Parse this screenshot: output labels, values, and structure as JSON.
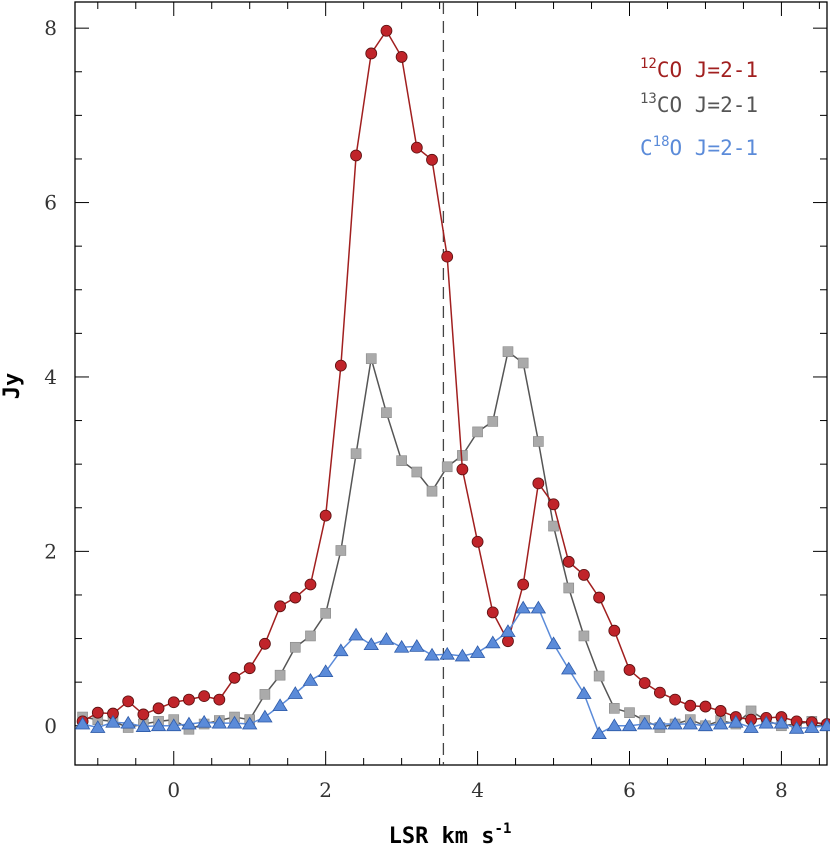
{
  "chart_data": {
    "type": "line",
    "xlabel": "LSR km s",
    "xlabel_sup": "-1",
    "ylabel": "Jy",
    "xlim": [
      -1.3,
      8.6
    ],
    "ylim": [
      -0.45,
      8.3
    ],
    "xticks": [
      0,
      2,
      4,
      6,
      8
    ],
    "yticks": [
      0,
      2,
      4,
      6,
      8
    ],
    "vline_x": 3.55,
    "grid": false,
    "legend_position": "top-right",
    "series": [
      {
        "name": "12CO J=2-1",
        "legend_sup": "12",
        "legend_main": "CO J=2-1",
        "legend_prefix": "",
        "color": "#a11f1f",
        "marker_fill": "#c0242a",
        "marker": "circle",
        "x": [
          -1.2,
          -1.0,
          -0.8,
          -0.6,
          -0.4,
          -0.2,
          0.0,
          0.2,
          0.4,
          0.6,
          0.8,
          1.0,
          1.2,
          1.4,
          1.6,
          1.8,
          2.0,
          2.2,
          2.4,
          2.6,
          2.8,
          3.0,
          3.2,
          3.4,
          3.6,
          3.8,
          4.0,
          4.2,
          4.4,
          4.6,
          4.8,
          5.0,
          5.2,
          5.4,
          5.6,
          5.8,
          6.0,
          6.2,
          6.4,
          6.6,
          6.8,
          7.0,
          7.2,
          7.4,
          7.6,
          7.8,
          8.0,
          8.2,
          8.4,
          8.6
        ],
        "y": [
          0.05,
          0.15,
          0.14,
          0.28,
          0.13,
          0.2,
          0.27,
          0.3,
          0.34,
          0.3,
          0.55,
          0.66,
          0.94,
          1.37,
          1.47,
          1.62,
          2.41,
          4.13,
          6.54,
          7.71,
          7.97,
          7.67,
          6.63,
          6.49,
          5.38,
          2.94,
          2.11,
          1.3,
          0.97,
          1.62,
          2.78,
          2.54,
          1.88,
          1.73,
          1.47,
          1.09,
          0.64,
          0.49,
          0.38,
          0.3,
          0.23,
          0.22,
          0.17,
          0.1,
          0.07,
          0.09,
          0.1,
          0.05,
          0.04,
          0.02
        ]
      },
      {
        "name": "13CO J=2-1",
        "legend_sup": "13",
        "legend_main": "CO J=2-1",
        "legend_prefix": "",
        "color": "#555555",
        "marker_fill": "#aaaaaa",
        "marker": "square",
        "x": [
          -1.2,
          -1.0,
          -0.8,
          -0.6,
          -0.4,
          -0.2,
          0.0,
          0.2,
          0.4,
          0.6,
          0.8,
          1.0,
          1.2,
          1.4,
          1.6,
          1.8,
          2.0,
          2.2,
          2.4,
          2.6,
          2.8,
          3.0,
          3.2,
          3.4,
          3.6,
          3.8,
          4.0,
          4.2,
          4.4,
          4.6,
          4.8,
          5.0,
          5.2,
          5.4,
          5.6,
          5.8,
          6.0,
          6.2,
          6.4,
          6.6,
          6.8,
          7.0,
          7.2,
          7.4,
          7.6,
          7.8,
          8.0,
          8.2,
          8.4,
          8.6
        ],
        "y": [
          0.1,
          0.07,
          0.05,
          -0.02,
          0.02,
          0.05,
          0.07,
          -0.04,
          0.02,
          0.06,
          0.1,
          0.07,
          0.36,
          0.58,
          0.9,
          1.03,
          1.29,
          2.01,
          3.12,
          4.21,
          3.59,
          3.04,
          2.91,
          2.69,
          2.97,
          3.1,
          3.37,
          3.49,
          4.29,
          4.16,
          3.26,
          2.29,
          1.58,
          1.03,
          0.57,
          0.2,
          0.15,
          0.06,
          -0.02,
          0.02,
          0.07,
          0.0,
          0.06,
          0.02,
          0.17,
          0.06,
          0.0,
          0.02,
          0.05,
          0.0
        ]
      },
      {
        "name": "C18O J=2-1",
        "legend_sup": "18",
        "legend_main": "O J=2-1",
        "legend_prefix": "C",
        "color": "#5b8bd9",
        "marker_fill": "#5b8bd9",
        "marker": "triangle",
        "x": [
          -1.2,
          -1.0,
          -0.8,
          -0.6,
          -0.4,
          -0.2,
          0.0,
          0.2,
          0.4,
          0.6,
          0.8,
          1.0,
          1.2,
          1.4,
          1.6,
          1.8,
          2.0,
          2.2,
          2.4,
          2.6,
          2.8,
          3.0,
          3.2,
          3.4,
          3.6,
          3.8,
          4.0,
          4.2,
          4.4,
          4.6,
          4.8,
          5.0,
          5.2,
          5.4,
          5.6,
          5.8,
          6.0,
          6.2,
          6.4,
          6.6,
          6.8,
          7.0,
          7.2,
          7.4,
          7.6,
          7.8,
          8.0,
          8.2,
          8.4,
          8.6
        ],
        "y": [
          0.02,
          -0.02,
          0.04,
          0.03,
          -0.01,
          0.0,
          0.0,
          0.02,
          0.04,
          0.03,
          0.03,
          0.02,
          0.1,
          0.23,
          0.37,
          0.52,
          0.62,
          0.86,
          1.04,
          0.93,
          0.99,
          0.9,
          0.91,
          0.81,
          0.82,
          0.8,
          0.84,
          0.95,
          1.08,
          1.35,
          1.35,
          0.94,
          0.65,
          0.37,
          -0.09,
          0.0,
          0.0,
          0.02,
          0.02,
          0.02,
          0.02,
          0.0,
          0.02,
          0.04,
          -0.02,
          0.03,
          0.03,
          -0.03,
          -0.02,
          0.0
        ]
      }
    ]
  }
}
